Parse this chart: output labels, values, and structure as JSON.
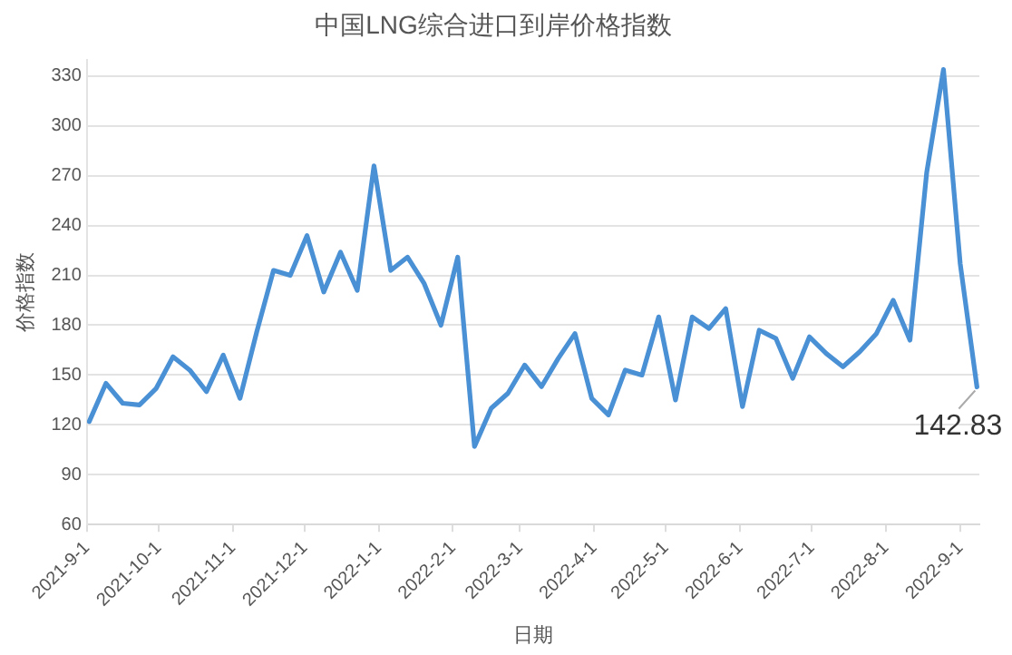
{
  "chart_data": {
    "type": "line",
    "title": "中国LNG综合进口到岸价格指数",
    "xlabel": "日期",
    "ylabel": "价格指数",
    "x": [
      "2021-09-02",
      "2021-09-09",
      "2021-09-16",
      "2021-09-23",
      "2021-09-30",
      "2021-10-07",
      "2021-10-14",
      "2021-10-21",
      "2021-10-28",
      "2021-11-04",
      "2021-11-11",
      "2021-11-18",
      "2021-11-25",
      "2021-12-02",
      "2021-12-09",
      "2021-12-16",
      "2021-12-23",
      "2021-12-30",
      "2022-01-06",
      "2022-01-13",
      "2022-01-20",
      "2022-01-27",
      "2022-02-03",
      "2022-02-10",
      "2022-02-17",
      "2022-02-24",
      "2022-03-03",
      "2022-03-10",
      "2022-03-17",
      "2022-03-24",
      "2022-03-31",
      "2022-04-07",
      "2022-04-14",
      "2022-04-21",
      "2022-04-28",
      "2022-05-05",
      "2022-05-12",
      "2022-05-19",
      "2022-05-26",
      "2022-06-02",
      "2022-06-09",
      "2022-06-16",
      "2022-06-23",
      "2022-06-30",
      "2022-07-07",
      "2022-07-14",
      "2022-07-21",
      "2022-07-28",
      "2022-08-04",
      "2022-08-11",
      "2022-08-18",
      "2022-08-25",
      "2022-09-01",
      "2022-09-08"
    ],
    "series": [
      {
        "color": "#4a90d4",
        "values": [
          122,
          145,
          133,
          132,
          142,
          161,
          153,
          140,
          162,
          136,
          176,
          213,
          210,
          234,
          200,
          224,
          201,
          276,
          213,
          221,
          205,
          180,
          221,
          107,
          130,
          139,
          156,
          143,
          160,
          175,
          136,
          126,
          153,
          150,
          185,
          135,
          185,
          178,
          190,
          131,
          177,
          172,
          148,
          173,
          163,
          155,
          164,
          175,
          195,
          171,
          272,
          334,
          217,
          142.83
        ]
      }
    ],
    "xlim": [
      "2021-09-01",
      "2022-09-09"
    ],
    "xticks": [
      {
        "value": "2021-09-01",
        "label": "2021-9-1"
      },
      {
        "value": "2021-10-01",
        "label": "2021-10-1"
      },
      {
        "value": "2021-11-01",
        "label": "2021-11-1"
      },
      {
        "value": "2021-12-01",
        "label": "2021-12-1"
      },
      {
        "value": "2022-01-01",
        "label": "2022-1-1"
      },
      {
        "value": "2022-02-01",
        "label": "2022-2-1"
      },
      {
        "value": "2022-03-01",
        "label": "2022-3-1"
      },
      {
        "value": "2022-04-01",
        "label": "2022-4-1"
      },
      {
        "value": "2022-05-01",
        "label": "2022-5-1"
      },
      {
        "value": "2022-06-01",
        "label": "2022-6-1"
      },
      {
        "value": "2022-07-01",
        "label": "2022-7-1"
      },
      {
        "value": "2022-08-01",
        "label": "2022-8-1"
      },
      {
        "value": "2022-09-01",
        "label": "2022-9-1"
      }
    ],
    "ylim": [
      60,
      340
    ],
    "yticks": [
      60,
      90,
      120,
      150,
      180,
      210,
      240,
      270,
      300,
      330
    ],
    "grid": "y",
    "marker": "none",
    "line_style": "solid",
    "legend": false,
    "annotations": [
      {
        "text": "142.83",
        "x": "2022-09-08",
        "y": 142.83
      }
    ]
  }
}
